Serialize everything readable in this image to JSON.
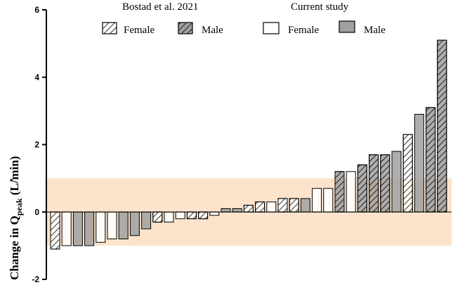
{
  "chart_data": {
    "type": "bar",
    "ylabel": {
      "prefix": "Change in ",
      "symbol": "Q",
      "subscript": "peak",
      "unit": "  (L/min)"
    },
    "ylim": [
      -2,
      6
    ],
    "yticks": [
      -2,
      0,
      2,
      4,
      6
    ],
    "grid": false,
    "band": {
      "from": -1,
      "to": 1,
      "color": "#fde3cc"
    },
    "legend": {
      "placement": "top",
      "groups": [
        {
          "title": "Bostad et al. 2021",
          "entries": [
            {
              "label": "Female",
              "style": "hatch-light"
            },
            {
              "label": "Male",
              "style": "hatch-dark"
            }
          ]
        },
        {
          "title": "Current study",
          "entries": [
            {
              "label": "Female",
              "style": "solid-light"
            },
            {
              "label": "Male",
              "style": "solid-dark"
            }
          ]
        }
      ]
    },
    "colors": {
      "light": "#ffffff",
      "dark": "#a0a0a0",
      "hatch": "#000000"
    },
    "styles": [
      "hatch-light",
      "solid-light",
      "solid-dark",
      "solid-dark",
      "solid-light",
      "solid-light",
      "solid-dark",
      "solid-dark",
      "solid-dark",
      "hatch-light",
      "solid-light",
      "solid-light",
      "hatch-light",
      "hatch-light",
      "solid-light",
      "solid-dark",
      "solid-dark",
      "hatch-light",
      "hatch-light",
      "solid-light",
      "hatch-light",
      "hatch-light",
      "solid-dark",
      "solid-light",
      "solid-light",
      "hatch-dark",
      "solid-light",
      "hatch-dark",
      "hatch-dark",
      "hatch-dark",
      "solid-dark",
      "hatch-light",
      "solid-dark",
      "hatch-dark",
      "hatch-dark"
    ],
    "values": [
      -1.1,
      -1.0,
      -1.0,
      -1.0,
      -0.9,
      -0.8,
      -0.8,
      -0.7,
      -0.5,
      -0.3,
      -0.3,
      -0.2,
      -0.2,
      -0.2,
      -0.1,
      0.1,
      0.1,
      0.2,
      0.3,
      0.3,
      0.4,
      0.4,
      0.4,
      0.7,
      0.7,
      1.2,
      1.2,
      1.4,
      1.7,
      1.7,
      1.8,
      2.3,
      2.9,
      3.1,
      5.1
    ]
  }
}
